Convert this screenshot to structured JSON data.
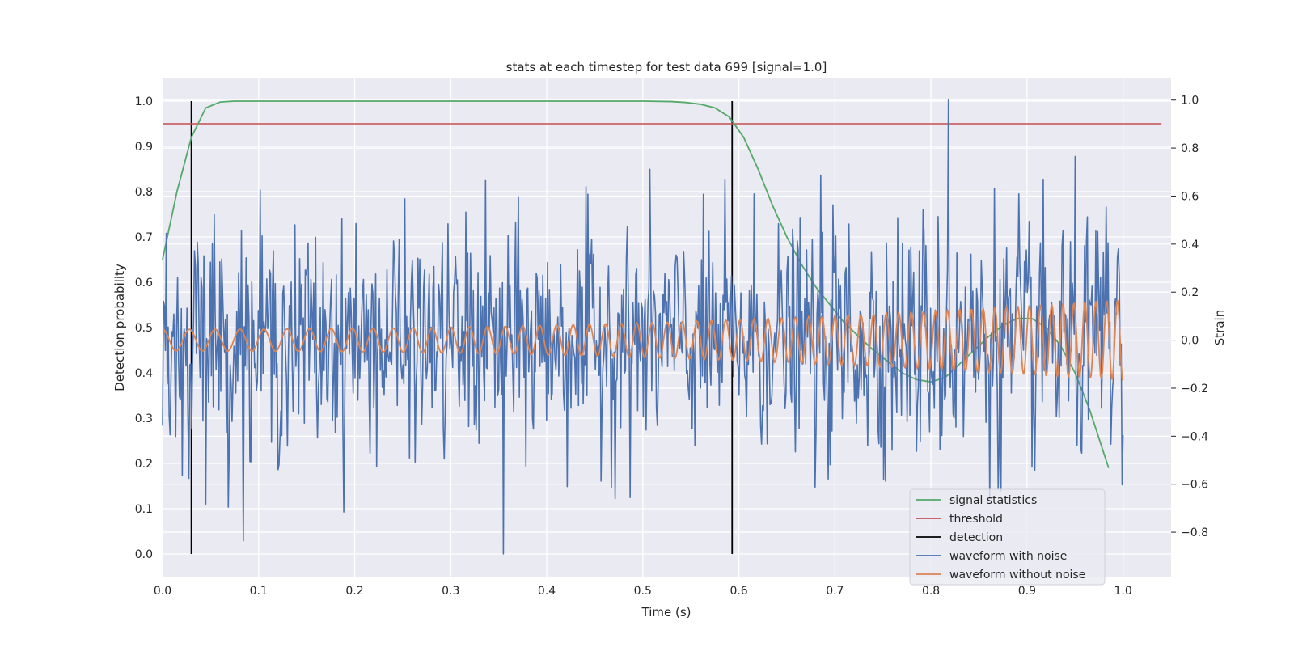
{
  "chart_data": {
    "type": "line",
    "title": "stats at each timestep for test data 699 [signal=1.0]",
    "xlabel": "Time (s)",
    "ylabel_left": "Detection probability",
    "ylabel_right": "Strain",
    "xlim": [
      0.0,
      1.05
    ],
    "ylim_left": [
      -0.05,
      1.05
    ],
    "ylim_right": [
      -0.985,
      1.09
    ],
    "x_ticks": [
      "0.0",
      "0.1",
      "0.2",
      "0.3",
      "0.4",
      "0.5",
      "0.6",
      "0.7",
      "0.8",
      "0.9",
      "1.0"
    ],
    "y_ticks_left": [
      "0.0",
      "0.1",
      "0.2",
      "0.3",
      "0.4",
      "0.5",
      "0.6",
      "0.7",
      "0.8",
      "0.9",
      "1.0"
    ],
    "y_ticks_right": [
      "−0.8",
      "−0.6",
      "−0.4",
      "−0.2",
      "0.0",
      "0.2",
      "0.4",
      "0.6",
      "0.8",
      "1.0"
    ],
    "grid": true,
    "legend_position": "lower-right",
    "legend": [
      "signal statistics",
      "threshold",
      "detection",
      "waveform with noise",
      "waveform without noise"
    ],
    "colors": {
      "signal_statistics": "#55a868",
      "threshold": "#c44e52",
      "detection": "#000000",
      "waveform_with_noise": "#4c72b0",
      "waveform_without_noise": "#dd8452",
      "plot_background": "#eaeaf2",
      "grid": "#ffffff"
    },
    "signal_statistics": {
      "x": [
        0.0,
        0.015,
        0.03,
        0.045,
        0.06,
        0.075,
        0.1,
        0.2,
        0.3,
        0.4,
        0.5,
        0.53,
        0.545,
        0.56,
        0.575,
        0.59,
        0.605,
        0.62,
        0.635,
        0.65,
        0.665,
        0.68,
        0.695,
        0.71,
        0.725,
        0.74,
        0.755,
        0.77,
        0.785,
        0.8,
        0.815,
        0.83,
        0.845,
        0.86,
        0.875,
        0.89,
        0.905,
        0.92,
        0.935,
        0.95,
        0.965,
        0.985
      ],
      "y": [
        0.65,
        0.8,
        0.92,
        0.985,
        0.998,
        1.0,
        1.0,
        1.0,
        1.0,
        1.0,
        1.0,
        0.999,
        0.997,
        0.993,
        0.985,
        0.965,
        0.92,
        0.85,
        0.77,
        0.7,
        0.64,
        0.59,
        0.55,
        0.51,
        0.48,
        0.45,
        0.425,
        0.4,
        0.385,
        0.38,
        0.39,
        0.42,
        0.45,
        0.48,
        0.505,
        0.52,
        0.52,
        0.5,
        0.46,
        0.4,
        0.32,
        0.19
      ]
    },
    "threshold": {
      "y": 0.95,
      "x_range": [
        0.0,
        1.04
      ]
    },
    "detections": {
      "x": [
        0.03,
        0.593
      ],
      "y_range": [
        0.0,
        1.0
      ]
    },
    "waveform_without_noise": {
      "x_range": [
        0.0,
        1.0
      ],
      "amplitude_start": 0.045,
      "amplitude_end": 0.17,
      "freq_start_hz": 35,
      "freq_end_hz": 90
    },
    "waveform_with_noise": {
      "x_range": [
        0.0,
        1.0
      ],
      "samples": 1024,
      "noise_std": 0.23,
      "min": -0.89,
      "max": 1.0,
      "peak_x": 0.818,
      "min_x": 0.355
    }
  }
}
